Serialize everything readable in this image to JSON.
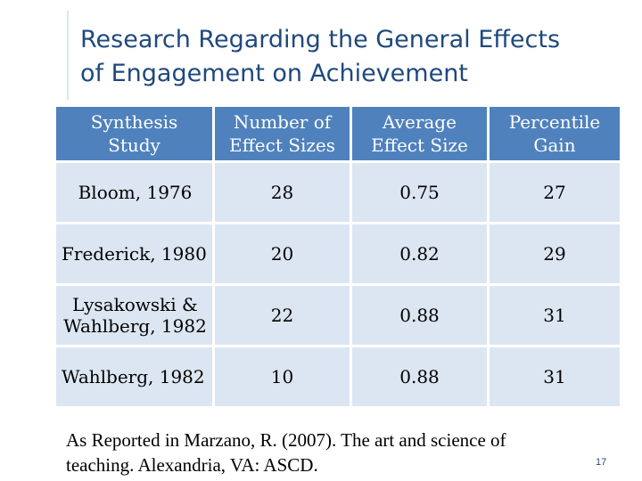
{
  "slide": {
    "title_line1": "Research Regarding the General Effects",
    "title_line2": "of Engagement on Achievement",
    "page_number": "17"
  },
  "table": {
    "headers": [
      [
        "Synthesis",
        "Study"
      ],
      [
        "Number of",
        "Effect Sizes"
      ],
      [
        "Average",
        "Effect Size"
      ],
      [
        "Percentile",
        "Gain"
      ]
    ],
    "rows": [
      {
        "study": [
          "Bloom, 1976"
        ],
        "num_effect_sizes": "28",
        "avg_effect_size": "0.75",
        "percentile_gain": "27"
      },
      {
        "study": [
          "Frederick, 1980"
        ],
        "num_effect_sizes": "20",
        "avg_effect_size": "0.82",
        "percentile_gain": "29"
      },
      {
        "study": [
          "Lysakowski &",
          "Wahlberg, 1982"
        ],
        "num_effect_sizes": "22",
        "avg_effect_size": "0.88",
        "percentile_gain": "31"
      },
      {
        "study": [
          "Wahlberg, 1982"
        ],
        "num_effect_sizes": "10",
        "avg_effect_size": "0.88",
        "percentile_gain": "31"
      }
    ]
  },
  "citation": {
    "line1": "As Reported in Marzano, R. (2007). The art and science of",
    "line2": "teaching.  Alexandria, VA: ASCD."
  },
  "colors": {
    "title": "#1f497d",
    "header_fill": "#4f81bd",
    "row_fill": "#dce6f2"
  }
}
